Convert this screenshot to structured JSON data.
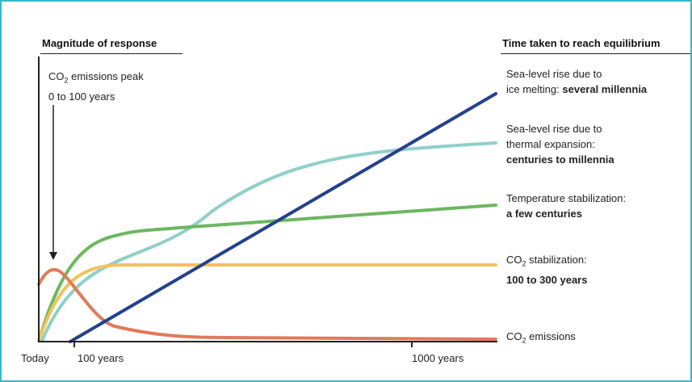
{
  "headers": {
    "left": "Magnitude of response",
    "right": "Time taken to reach equilibrium"
  },
  "peak_note": {
    "line1_pre": "CO",
    "line1_sub": "2",
    "line1_post": " emissions peak",
    "line2": "0 to 100 years"
  },
  "labels": {
    "sea_ice": {
      "line1": "Sea-level rise due to",
      "line2_pre": "ice melting: ",
      "line2_bold": "several millennia"
    },
    "sea_thermal": {
      "line1": "Sea-level rise due to",
      "line2": "thermal expansion:",
      "line3_bold": "centuries to millennia"
    },
    "temperature": {
      "line1": "Temperature stabilization:",
      "line2_bold": "a few centuries"
    },
    "co2_stab": {
      "line1_pre": "CO",
      "line1_sub": "2",
      "line1_post": " stabilization:",
      "line2_bold": "100 to 300 years"
    },
    "co2_emissions": {
      "pre": "CO",
      "sub": "2",
      "post": " emissions"
    }
  },
  "ticks": {
    "today": "Today",
    "t100": "100 years",
    "t1000": "1000 years"
  },
  "colors": {
    "frame": "#39b6c8",
    "sea_ice": "#24408f",
    "sea_thermal": "#8fd0c9",
    "temperature": "#6cb760",
    "co2_stab": "#f2c25a",
    "co2_emissions": "#e07a5a",
    "axis": "#222222"
  }
}
